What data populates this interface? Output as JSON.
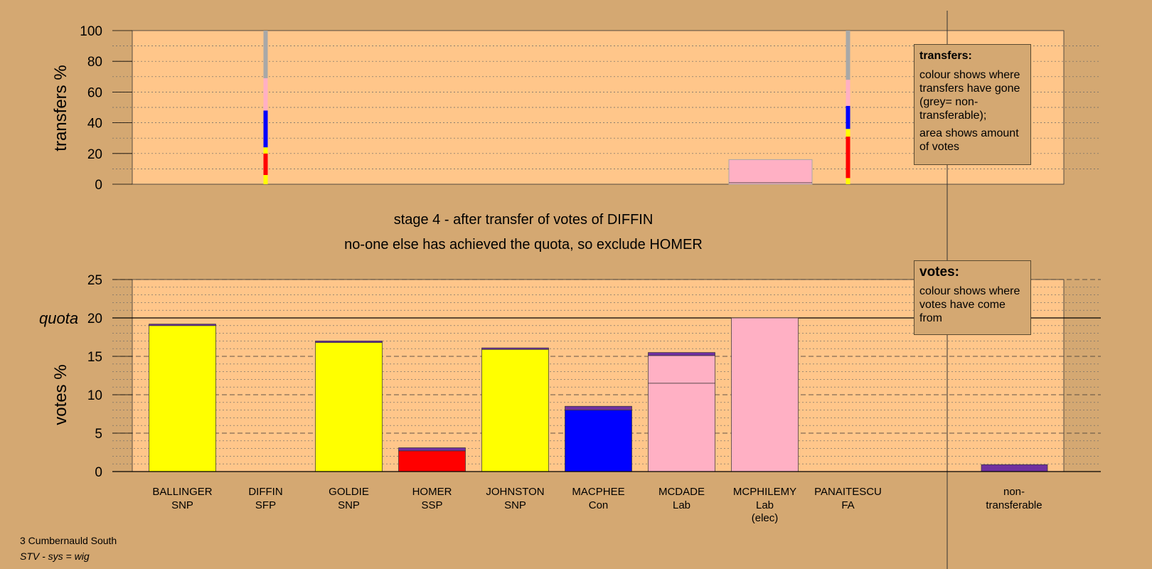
{
  "chart_data": [
    {
      "type": "bar",
      "ylabel": "transfers %",
      "ylim": [
        0,
        100
      ],
      "yticks": [
        0,
        20,
        40,
        60,
        80,
        100
      ],
      "candidates": [
        "BALLINGER",
        "DIFFIN",
        "GOLDIE",
        "HOMER",
        "JOHNSTON",
        "MACPHEE",
        "MCDADE",
        "MCPHILEMY",
        "PANAITESCU"
      ],
      "transfer_columns": [
        {
          "candidate": "DIFFIN",
          "segments": [
            {
              "color": "#ffff00",
              "from": 0,
              "to": 6
            },
            {
              "color": "#ff0000",
              "to": 20
            },
            {
              "color": "#ffff00",
              "to": 24
            },
            {
              "color": "#0000ff",
              "to": 48
            },
            {
              "color": "#ffb0c4",
              "to": 69
            },
            {
              "color": "#a8a8a8",
              "to": 100
            }
          ]
        },
        {
          "candidate": "PANAITESCU",
          "segments": [
            {
              "color": "#ffff00",
              "from": 0,
              "to": 4
            },
            {
              "color": "#ff0000",
              "to": 31
            },
            {
              "color": "#ffff00",
              "to": 36
            },
            {
              "color": "#0000ff",
              "to": 51
            },
            {
              "color": "#ffb0c4",
              "to": 68
            },
            {
              "color": "#a8a8a8",
              "to": 100
            }
          ]
        }
      ],
      "transfer_area": {
        "candidate": "MCPHILEMY",
        "color": "#ffb0c4",
        "value": 16
      }
    },
    {
      "type": "bar",
      "ylabel": "votes %",
      "ylim": [
        0,
        25
      ],
      "yticks": [
        0,
        5,
        10,
        15,
        20,
        25
      ],
      "quota": 20,
      "quota_label": "quota",
      "categories": [
        {
          "name": "BALLINGER",
          "party": "SNP",
          "segments": [
            {
              "color": "#ffff00",
              "value": 19.0
            },
            {
              "color": "#7030a0",
              "value": 0.2
            }
          ]
        },
        {
          "name": "DIFFIN",
          "party": "SFP",
          "segments": []
        },
        {
          "name": "GOLDIE",
          "party": "SNP",
          "segments": [
            {
              "color": "#ffff00",
              "value": 16.8
            },
            {
              "color": "#7030a0",
              "value": 0.2
            }
          ]
        },
        {
          "name": "HOMER",
          "party": "SSP",
          "segments": [
            {
              "color": "#ff0000",
              "value": 2.7
            },
            {
              "color": "#7030a0",
              "value": 0.4
            }
          ]
        },
        {
          "name": "JOHNSTON",
          "party": "SNP",
          "segments": [
            {
              "color": "#ffff00",
              "value": 15.9
            },
            {
              "color": "#7030a0",
              "value": 0.2
            }
          ]
        },
        {
          "name": "MACPHEE",
          "party": "Con",
          "segments": [
            {
              "color": "#0000ff",
              "value": 8.0
            },
            {
              "color": "#7030a0",
              "value": 0.5
            }
          ]
        },
        {
          "name": "MCDADE",
          "party": "Lab",
          "segments": [
            {
              "color": "#ffb0c4",
              "value": 11.5
            },
            {
              "color": "#ffb0c4",
              "value": 3.6
            },
            {
              "color": "#7030a0",
              "value": 0.4
            }
          ]
        },
        {
          "name": "MCPHILEMY",
          "party": "Lab",
          "status": "(elec)",
          "segments": [
            {
              "color": "#ffb0c4",
              "value": 20.0
            }
          ]
        },
        {
          "name": "PANAITESCU",
          "party": "FA",
          "segments": []
        }
      ],
      "nontransferable": {
        "label_line1": "non-",
        "label_line2": "transferable",
        "segments": [
          {
            "color": "#7030a0",
            "value": 0.9
          }
        ]
      }
    }
  ],
  "stage_text": "stage 4 - after transfer of votes of DIFFIN",
  "action_text": "no-one else has achieved the quota, so exclude HOMER",
  "legend_transfers": {
    "title": "transfers:",
    "line1": "colour shows where transfers have gone (grey= non-transferable);",
    "line2": "area shows amount of votes"
  },
  "legend_votes": {
    "title": "votes:",
    "line1": "colour shows where votes have come from"
  },
  "footer": {
    "ward": "3 Cumbernauld South",
    "system": "STV - sys = wig"
  },
  "colors": {
    "background": "#d4a872",
    "plot_area": "#ffc68a",
    "snp": "#ffff00",
    "ssp": "#ff0000",
    "con": "#0000ff",
    "lab": "#ffb0c4",
    "nontransferable": "#7030a0",
    "grey": "#a8a8a8"
  }
}
